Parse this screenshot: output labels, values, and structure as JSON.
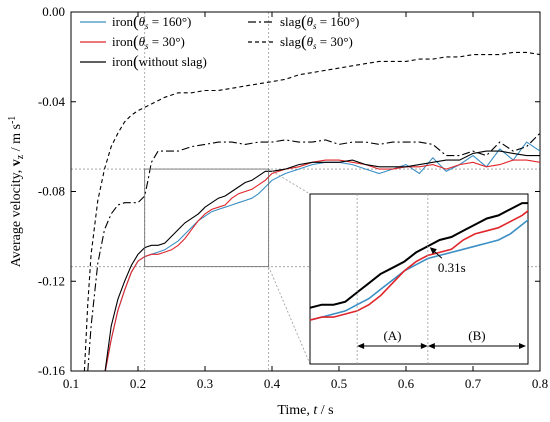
{
  "chart_data": {
    "type": "line",
    "title": "",
    "xlabel": {
      "prefix": "Time, ",
      "var": "t",
      "suffix": " / s"
    },
    "ylabel": {
      "prefix": "Average velocity, ",
      "var": "v",
      "sub": "z",
      "suffix": " / m s",
      "sup": "-1"
    },
    "xlim": [
      0.1,
      0.8
    ],
    "ylim": [
      -0.16,
      0.0
    ],
    "xticks": [
      0.1,
      0.2,
      0.3,
      0.4,
      0.5,
      0.6,
      0.7,
      0.8
    ],
    "xtick_labels": [
      "0.1",
      "0.2",
      "0.3",
      "0.4",
      "0.5",
      "0.6",
      "0.7",
      "0.8"
    ],
    "yticks": [
      0.0,
      -0.04,
      -0.08,
      -0.12,
      -0.16
    ],
    "ytick_labels": [
      "0.00",
      "-0.04",
      "-0.08",
      "-0.12",
      "-0.16"
    ],
    "grid": false,
    "legend_position": "top",
    "series": [
      {
        "name": "iron(θs = 160°)",
        "color": "#3b8fc4",
        "dash": "",
        "x": [
          0.15,
          0.16,
          0.17,
          0.18,
          0.19,
          0.2,
          0.21,
          0.22,
          0.23,
          0.24,
          0.25,
          0.26,
          0.27,
          0.28,
          0.29,
          0.3,
          0.31,
          0.32,
          0.33,
          0.34,
          0.35,
          0.36,
          0.37,
          0.38,
          0.39,
          0.4,
          0.42,
          0.44,
          0.46,
          0.48,
          0.5,
          0.52,
          0.54,
          0.56,
          0.58,
          0.6,
          0.62,
          0.64,
          0.66,
          0.68,
          0.7,
          0.72,
          0.74,
          0.76,
          0.78,
          0.8
        ],
        "y": [
          -0.162,
          -0.146,
          -0.133,
          -0.124,
          -0.116,
          -0.111,
          -0.109,
          -0.108,
          -0.107,
          -0.106,
          -0.104,
          -0.102,
          -0.099,
          -0.096,
          -0.093,
          -0.091,
          -0.089,
          -0.088,
          -0.087,
          -0.086,
          -0.085,
          -0.084,
          -0.083,
          -0.081,
          -0.078,
          -0.075,
          -0.072,
          -0.07,
          -0.068,
          -0.067,
          -0.067,
          -0.068,
          -0.07,
          -0.072,
          -0.07,
          -0.068,
          -0.072,
          -0.065,
          -0.071,
          -0.068,
          -0.064,
          -0.069,
          -0.061,
          -0.066,
          -0.058,
          -0.062
        ]
      },
      {
        "name": "iron(θs = 30°)",
        "color": "#e0262a",
        "dash": "",
        "x": [
          0.15,
          0.16,
          0.17,
          0.18,
          0.19,
          0.2,
          0.21,
          0.22,
          0.23,
          0.24,
          0.25,
          0.26,
          0.27,
          0.28,
          0.29,
          0.3,
          0.31,
          0.32,
          0.33,
          0.34,
          0.35,
          0.36,
          0.37,
          0.38,
          0.39,
          0.4,
          0.42,
          0.44,
          0.46,
          0.48,
          0.5,
          0.52,
          0.54,
          0.56,
          0.58,
          0.6,
          0.62,
          0.64,
          0.66,
          0.68,
          0.7,
          0.72,
          0.74,
          0.76,
          0.78,
          0.8
        ],
        "y": [
          -0.162,
          -0.146,
          -0.133,
          -0.124,
          -0.116,
          -0.111,
          -0.109,
          -0.108,
          -0.108,
          -0.107,
          -0.106,
          -0.104,
          -0.101,
          -0.097,
          -0.093,
          -0.09,
          -0.088,
          -0.087,
          -0.086,
          -0.083,
          -0.081,
          -0.08,
          -0.079,
          -0.077,
          -0.075,
          -0.072,
          -0.07,
          -0.069,
          -0.067,
          -0.066,
          -0.066,
          -0.067,
          -0.068,
          -0.07,
          -0.07,
          -0.069,
          -0.069,
          -0.068,
          -0.07,
          -0.068,
          -0.067,
          -0.069,
          -0.068,
          -0.066,
          -0.066,
          -0.067
        ]
      },
      {
        "name": "iron(without slag)",
        "color": "#000000",
        "dash": "",
        "x": [
          0.15,
          0.16,
          0.17,
          0.18,
          0.19,
          0.2,
          0.21,
          0.22,
          0.23,
          0.24,
          0.25,
          0.26,
          0.27,
          0.28,
          0.29,
          0.3,
          0.31,
          0.32,
          0.33,
          0.34,
          0.35,
          0.36,
          0.37,
          0.38,
          0.39,
          0.4,
          0.42,
          0.44,
          0.46,
          0.48,
          0.5,
          0.52,
          0.54,
          0.56,
          0.58,
          0.6,
          0.62,
          0.64,
          0.66,
          0.68,
          0.7,
          0.72,
          0.74,
          0.76,
          0.78,
          0.8
        ],
        "y": [
          -0.162,
          -0.14,
          -0.128,
          -0.12,
          -0.113,
          -0.108,
          -0.105,
          -0.104,
          -0.104,
          -0.103,
          -0.1,
          -0.097,
          -0.094,
          -0.092,
          -0.09,
          -0.087,
          -0.085,
          -0.083,
          -0.082,
          -0.08,
          -0.078,
          -0.076,
          -0.075,
          -0.073,
          -0.071,
          -0.071,
          -0.07,
          -0.068,
          -0.067,
          -0.067,
          -0.067,
          -0.066,
          -0.068,
          -0.069,
          -0.069,
          -0.069,
          -0.068,
          -0.067,
          -0.066,
          -0.066,
          -0.063,
          -0.062,
          -0.062,
          -0.063,
          -0.064,
          -0.064
        ]
      },
      {
        "name": "slag(θs = 160°)",
        "color": "#000000",
        "dash": "8,3,2,3",
        "x": [
          0.125,
          0.13,
          0.14,
          0.15,
          0.16,
          0.17,
          0.18,
          0.19,
          0.2,
          0.21,
          0.215,
          0.22,
          0.23,
          0.24,
          0.26,
          0.28,
          0.3,
          0.32,
          0.34,
          0.36,
          0.38,
          0.4,
          0.42,
          0.44,
          0.46,
          0.48,
          0.5,
          0.52,
          0.54,
          0.56,
          0.58,
          0.6,
          0.62,
          0.64,
          0.66,
          0.68,
          0.7,
          0.72,
          0.74,
          0.76,
          0.78,
          0.8
        ],
        "y": [
          -0.16,
          -0.14,
          -0.112,
          -0.097,
          -0.09,
          -0.086,
          -0.085,
          -0.085,
          -0.085,
          -0.082,
          -0.075,
          -0.067,
          -0.062,
          -0.062,
          -0.062,
          -0.06,
          -0.059,
          -0.058,
          -0.058,
          -0.059,
          -0.058,
          -0.058,
          -0.057,
          -0.058,
          -0.058,
          -0.057,
          -0.059,
          -0.058,
          -0.058,
          -0.059,
          -0.058,
          -0.058,
          -0.058,
          -0.059,
          -0.064,
          -0.064,
          -0.062,
          -0.064,
          -0.058,
          -0.062,
          -0.06,
          -0.054
        ]
      },
      {
        "name": "slag(θs = 30°)",
        "color": "#000000",
        "dash": "4,3",
        "x": [
          0.12,
          0.125,
          0.13,
          0.14,
          0.15,
          0.16,
          0.17,
          0.18,
          0.19,
          0.2,
          0.22,
          0.24,
          0.26,
          0.28,
          0.3,
          0.32,
          0.34,
          0.36,
          0.38,
          0.4,
          0.42,
          0.44,
          0.46,
          0.48,
          0.5,
          0.52,
          0.54,
          0.56,
          0.58,
          0.6,
          0.62,
          0.64,
          0.66,
          0.68,
          0.7,
          0.72,
          0.74,
          0.76,
          0.78,
          0.8
        ],
        "y": [
          -0.16,
          -0.13,
          -0.108,
          -0.084,
          -0.07,
          -0.06,
          -0.054,
          -0.049,
          -0.046,
          -0.044,
          -0.041,
          -0.038,
          -0.036,
          -0.036,
          -0.035,
          -0.035,
          -0.034,
          -0.033,
          -0.032,
          -0.031,
          -0.03,
          -0.028,
          -0.027,
          -0.026,
          -0.025,
          -0.024,
          -0.023,
          -0.022,
          -0.022,
          -0.022,
          -0.021,
          -0.021,
          -0.02,
          -0.02,
          -0.019,
          -0.019,
          -0.019,
          -0.018,
          -0.018,
          -0.019
        ]
      }
    ],
    "legend": [
      {
        "label_main": "iron",
        "label_paren": "θ",
        "label_sub": "s",
        "label_rest": " = 160°)",
        "full": "iron(θs = 160°)",
        "color": "#3b8fc4",
        "dash": ""
      },
      {
        "label_main": "iron",
        "label_paren": "θ",
        "label_sub": "s",
        "label_rest": " = 30°)",
        "full": "iron(θs = 30°)",
        "color": "#e0262a",
        "dash": ""
      },
      {
        "label_main": "iron",
        "label_paren": "",
        "label_sub": "",
        "label_rest": "without slag)",
        "full": "iron(without slag)",
        "color": "#000000",
        "dash": ""
      },
      {
        "label_main": "slag",
        "label_paren": "θ",
        "label_sub": "s",
        "label_rest": " = 160°)",
        "full": "slag(θs = 160°)",
        "color": "#000000",
        "dash": "8,3,2,3"
      },
      {
        "label_main": "slag",
        "label_paren": "θ",
        "label_sub": "s",
        "label_rest": " = 30°)",
        "full": "slag(θs = 30°)",
        "color": "#000000",
        "dash": "4,3"
      }
    ],
    "reference_lines": [
      {
        "orientation": "vertical",
        "x": 0.21
      },
      {
        "orientation": "vertical",
        "x": 0.395
      },
      {
        "orientation": "horizontal",
        "y": -0.07
      },
      {
        "orientation": "horizontal",
        "y": -0.1135
      }
    ],
    "zoom_region": {
      "x": [
        0.21,
        0.395
      ],
      "y": [
        -0.1135,
        -0.07
      ]
    },
    "inset": {
      "annotation": "0.31s",
      "annotation_x": 0.31,
      "split_x": 0.31,
      "bracket_start_x": 0.25,
      "bracket_end_x": 0.395,
      "phases": [
        "(A)",
        "(B)"
      ]
    }
  }
}
